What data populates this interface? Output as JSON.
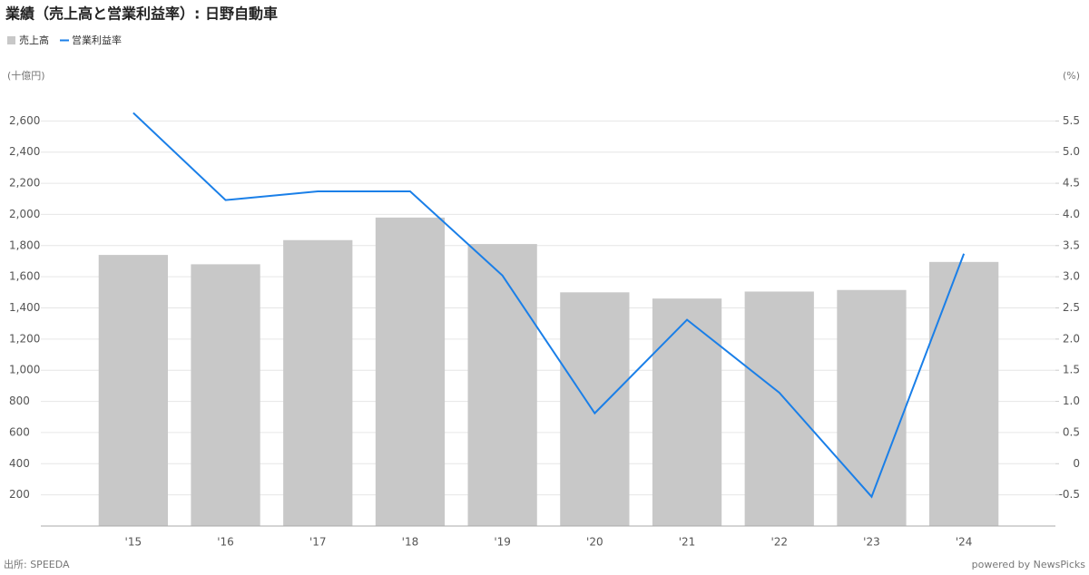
{
  "chart_data": {
    "type": "combo",
    "title": "業績（売上高と営業利益率）: 日野自動車",
    "y_label": "(十億円)",
    "y2_label": "(%)",
    "categories": [
      "'15",
      "'16",
      "'17",
      "'18",
      "'19",
      "'20",
      "'21",
      "'22",
      "'23",
      "'24"
    ],
    "series": [
      {
        "name": "売上高",
        "type": "bar",
        "color": "#c8c8c8",
        "values": [
          1740,
          1680,
          1835,
          1980,
          1810,
          1500,
          1460,
          1505,
          1515,
          1695
        ]
      },
      {
        "name": "営業利益率",
        "type": "line",
        "axis": "y2",
        "color": "#1a7fe8",
        "values": [
          5.63,
          4.23,
          4.37,
          4.37,
          3.02,
          0.81,
          2.31,
          1.14,
          -0.53,
          3.37
        ]
      }
    ],
    "ylim": [
      0,
      2800
    ],
    "yticks": [
      200,
      400,
      600,
      800,
      {
        "value": 1000,
        "label": "1,000"
      },
      {
        "value": 1200,
        "label": "1,200"
      },
      {
        "value": 1400,
        "label": "1,400"
      },
      {
        "value": 1600,
        "label": "1,600"
      },
      {
        "value": 1800,
        "label": "1,800"
      },
      {
        "value": 2000,
        "label": "2,000"
      },
      {
        "value": 2200,
        "label": "2,200"
      },
      {
        "value": 2400,
        "label": "2,400"
      },
      {
        "value": 2600,
        "label": "2,600"
      }
    ],
    "y2lim": [
      -1,
      6
    ],
    "y2ticks": [
      -0.5,
      0,
      0.5,
      {
        "value": 1,
        "label": "1.0"
      },
      1.5,
      {
        "value": 2,
        "label": "2.0"
      },
      2.5,
      {
        "value": 3,
        "label": "3.0"
      },
      3.5,
      {
        "value": 4,
        "label": "4.0"
      },
      4.5,
      {
        "value": 5,
        "label": "5.0"
      },
      5.5
    ],
    "grid": true,
    "source": "出所: SPEEDA",
    "credit": "powered by NewsPicks"
  }
}
